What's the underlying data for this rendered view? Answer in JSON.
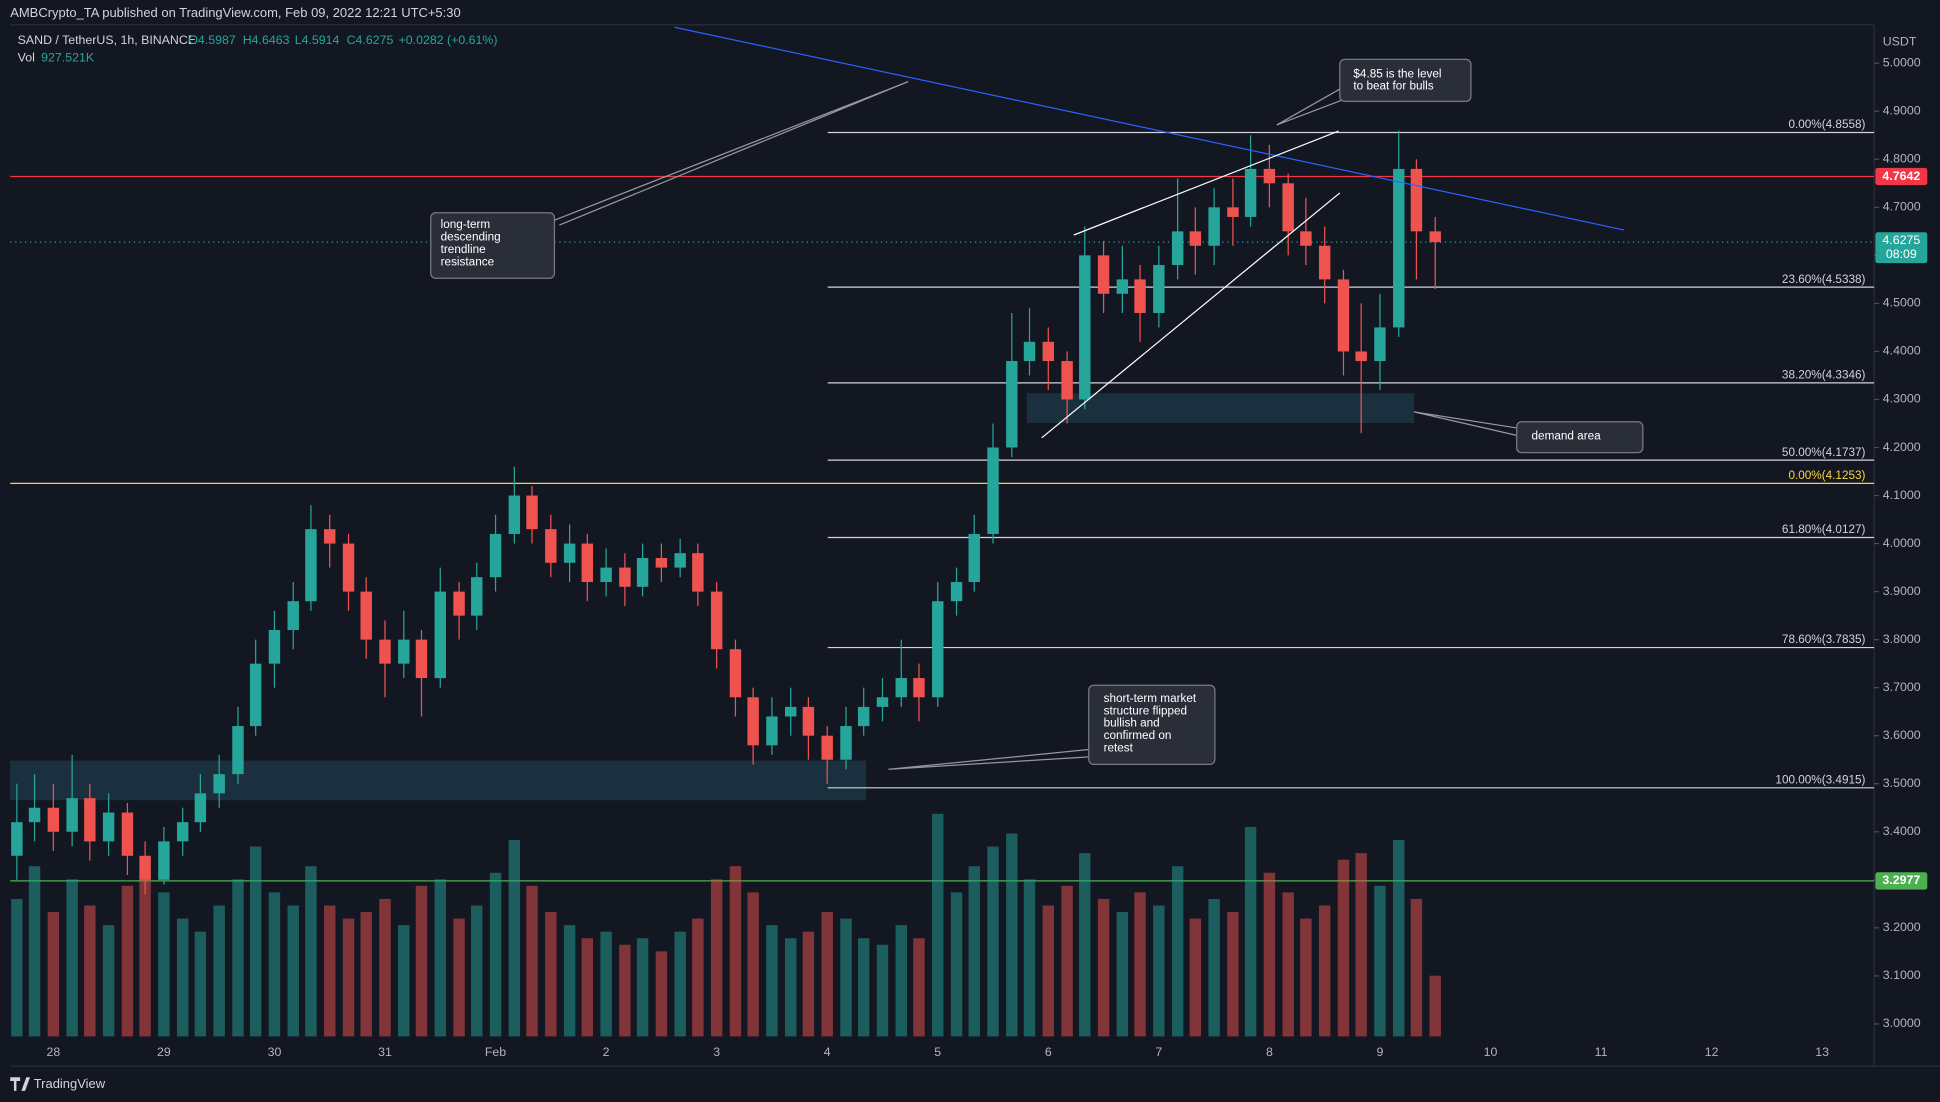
{
  "header": {
    "publisher": "AMBCrypto_TA published on TradingView.com, Feb 09, 2022 12:21 UTC+5:30"
  },
  "footer": {
    "brand": "TradingView"
  },
  "chart_data": {
    "type": "candlestick",
    "symbol": "SAND / TetherUS, 1h, BINANCE",
    "quote": [
      "O4.5987",
      "H4.6463",
      "L4.5914",
      "C4.6275",
      "+0.0282 (+0.61%)"
    ],
    "volume_title": "Vol",
    "volume_value": "927.521K",
    "currency": "USDT",
    "up_color": "#26a69a",
    "down_color": "#ef5350",
    "xlim": [
      27.61,
      44.47
    ],
    "ylim": [
      2.961,
      5.075
    ],
    "xticks": [
      28,
      29,
      30,
      31,
      {
        "value": 32,
        "label": "Feb"
      },
      {
        "value": 33,
        "label": "2"
      },
      {
        "value": 34,
        "label": "3"
      },
      {
        "value": 35,
        "label": "4"
      },
      {
        "value": 36,
        "label": "5"
      },
      {
        "value": 37,
        "label": "6"
      },
      {
        "value": 38,
        "label": "7"
      },
      {
        "value": 39,
        "label": "8"
      },
      {
        "value": 40,
        "label": "9"
      },
      {
        "value": 41,
        "label": "10"
      },
      {
        "value": 42,
        "label": "11"
      },
      {
        "value": 43,
        "label": "12"
      },
      {
        "value": 44,
        "label": "13"
      }
    ],
    "yticks": [
      {
        "value": 3.0,
        "label": "3.0000"
      },
      {
        "value": 3.1,
        "label": "3.1000"
      },
      {
        "value": 3.2,
        "label": "3.2000"
      },
      {
        "value": 3.3,
        "label": "3.3000"
      },
      {
        "value": 3.4,
        "label": "3.4000"
      },
      {
        "value": 3.5,
        "label": "3.5000"
      },
      {
        "value": 3.6,
        "label": "3.6000"
      },
      {
        "value": 3.7,
        "label": "3.7000"
      },
      {
        "value": 3.8,
        "label": "3.8000"
      },
      {
        "value": 3.9,
        "label": "3.9000"
      },
      {
        "value": 4.0,
        "label": "4.0000"
      },
      {
        "value": 4.1,
        "label": "4.1000"
      },
      {
        "value": 4.2,
        "label": "4.2000"
      },
      {
        "value": 4.3,
        "label": "4.3000"
      },
      {
        "value": 4.4,
        "label": "4.4000"
      },
      {
        "value": 4.5,
        "label": "4.5000"
      },
      {
        "value": 4.6,
        "label": "4.6000"
      },
      {
        "value": 4.7,
        "label": "4.7000"
      },
      {
        "value": 4.8,
        "label": "4.8000"
      },
      {
        "value": 4.9,
        "label": "4.9000"
      },
      {
        "value": 5.0,
        "label": "5.0000"
      }
    ],
    "grid": true,
    "candles": [
      [
        27.67,
        3.35,
        3.5,
        3.3,
        3.42
      ],
      [
        27.83,
        3.42,
        3.52,
        3.38,
        3.45
      ],
      [
        28.0,
        3.45,
        3.5,
        3.36,
        3.4
      ],
      [
        28.17,
        3.4,
        3.56,
        3.37,
        3.47
      ],
      [
        28.33,
        3.47,
        3.5,
        3.34,
        3.38
      ],
      [
        28.5,
        3.38,
        3.48,
        3.35,
        3.44
      ],
      [
        28.67,
        3.44,
        3.46,
        3.31,
        3.35
      ],
      [
        28.83,
        3.35,
        3.38,
        3.27,
        3.3
      ],
      [
        29.0,
        3.3,
        3.41,
        3.29,
        3.38
      ],
      [
        29.17,
        3.38,
        3.45,
        3.35,
        3.42
      ],
      [
        29.33,
        3.42,
        3.52,
        3.4,
        3.48
      ],
      [
        29.5,
        3.48,
        3.56,
        3.45,
        3.52
      ],
      [
        29.67,
        3.52,
        3.66,
        3.5,
        3.62
      ],
      [
        29.83,
        3.62,
        3.8,
        3.6,
        3.75
      ],
      [
        30.0,
        3.75,
        3.86,
        3.7,
        3.82
      ],
      [
        30.17,
        3.82,
        3.92,
        3.78,
        3.88
      ],
      [
        30.33,
        3.88,
        4.08,
        3.86,
        4.03
      ],
      [
        30.5,
        4.03,
        4.06,
        3.95,
        4.0
      ],
      [
        30.67,
        4.0,
        4.02,
        3.86,
        3.9
      ],
      [
        30.83,
        3.9,
        3.93,
        3.76,
        3.8
      ],
      [
        31.0,
        3.8,
        3.84,
        3.68,
        3.75
      ],
      [
        31.17,
        3.75,
        3.86,
        3.72,
        3.8
      ],
      [
        31.33,
        3.8,
        3.82,
        3.64,
        3.72
      ],
      [
        31.5,
        3.72,
        3.95,
        3.7,
        3.9
      ],
      [
        31.67,
        3.9,
        3.92,
        3.8,
        3.85
      ],
      [
        31.83,
        3.85,
        3.96,
        3.82,
        3.93
      ],
      [
        32.0,
        3.93,
        4.06,
        3.9,
        4.02
      ],
      [
        32.17,
        4.02,
        4.16,
        4.0,
        4.1
      ],
      [
        32.33,
        4.1,
        4.12,
        4.0,
        4.03
      ],
      [
        32.5,
        4.03,
        4.06,
        3.93,
        3.96
      ],
      [
        32.67,
        3.96,
        4.04,
        3.92,
        4.0
      ],
      [
        32.83,
        4.0,
        4.02,
        3.88,
        3.92
      ],
      [
        33.0,
        3.92,
        3.99,
        3.89,
        3.95
      ],
      [
        33.17,
        3.95,
        3.98,
        3.87,
        3.91
      ],
      [
        33.33,
        3.91,
        4.0,
        3.89,
        3.97
      ],
      [
        33.5,
        3.97,
        4.0,
        3.92,
        3.95
      ],
      [
        33.67,
        3.95,
        4.01,
        3.93,
        3.98
      ],
      [
        33.83,
        3.98,
        4.0,
        3.87,
        3.9
      ],
      [
        34.0,
        3.9,
        3.92,
        3.74,
        3.78
      ],
      [
        34.17,
        3.78,
        3.8,
        3.64,
        3.68
      ],
      [
        34.33,
        3.68,
        3.7,
        3.54,
        3.58
      ],
      [
        34.5,
        3.58,
        3.68,
        3.56,
        3.64
      ],
      [
        34.67,
        3.64,
        3.7,
        3.6,
        3.66
      ],
      [
        34.83,
        3.66,
        3.68,
        3.55,
        3.6
      ],
      [
        35.0,
        3.6,
        3.62,
        3.5,
        3.55
      ],
      [
        35.17,
        3.55,
        3.66,
        3.53,
        3.62
      ],
      [
        35.33,
        3.62,
        3.7,
        3.6,
        3.66
      ],
      [
        35.5,
        3.66,
        3.72,
        3.63,
        3.68
      ],
      [
        35.67,
        3.68,
        3.8,
        3.66,
        3.72
      ],
      [
        35.83,
        3.72,
        3.75,
        3.63,
        3.68
      ],
      [
        36.0,
        3.68,
        3.92,
        3.66,
        3.88
      ],
      [
        36.17,
        3.88,
        3.95,
        3.85,
        3.92
      ],
      [
        36.33,
        3.92,
        4.06,
        3.9,
        4.02
      ],
      [
        36.5,
        4.02,
        4.25,
        4.0,
        4.2
      ],
      [
        36.67,
        4.2,
        4.48,
        4.18,
        4.38
      ],
      [
        36.83,
        4.38,
        4.49,
        4.35,
        4.42
      ],
      [
        37.0,
        4.42,
        4.45,
        4.32,
        4.38
      ],
      [
        37.17,
        4.38,
        4.4,
        4.25,
        4.3
      ],
      [
        37.33,
        4.3,
        4.66,
        4.28,
        4.6
      ],
      [
        37.5,
        4.6,
        4.63,
        4.48,
        4.52
      ],
      [
        37.67,
        4.52,
        4.62,
        4.48,
        4.55
      ],
      [
        37.83,
        4.55,
        4.58,
        4.42,
        4.48
      ],
      [
        38.0,
        4.48,
        4.62,
        4.45,
        4.58
      ],
      [
        38.17,
        4.58,
        4.76,
        4.55,
        4.65
      ],
      [
        38.33,
        4.65,
        4.7,
        4.56,
        4.62
      ],
      [
        38.5,
        4.62,
        4.74,
        4.58,
        4.7
      ],
      [
        38.67,
        4.7,
        4.76,
        4.62,
        4.68
      ],
      [
        38.83,
        4.68,
        4.85,
        4.66,
        4.78
      ],
      [
        39.0,
        4.78,
        4.83,
        4.7,
        4.75
      ],
      [
        39.17,
        4.75,
        4.77,
        4.6,
        4.65
      ],
      [
        39.33,
        4.65,
        4.72,
        4.58,
        4.62
      ],
      [
        39.5,
        4.62,
        4.66,
        4.5,
        4.55
      ],
      [
        39.67,
        4.55,
        4.57,
        4.35,
        4.4
      ],
      [
        39.83,
        4.4,
        4.5,
        4.23,
        4.38
      ],
      [
        40.0,
        4.38,
        4.52,
        4.32,
        4.45
      ],
      [
        40.17,
        4.45,
        4.86,
        4.43,
        4.78
      ],
      [
        40.33,
        4.78,
        4.8,
        4.55,
        4.65
      ],
      [
        40.5,
        4.65,
        4.68,
        4.53,
        4.6275
      ]
    ],
    "volume": [
      2100,
      2600,
      1900,
      2400,
      2000,
      1700,
      2300,
      2500,
      2200,
      1800,
      1600,
      2000,
      2400,
      2900,
      2200,
      2000,
      2600,
      2000,
      1800,
      1900,
      2100,
      1700,
      2300,
      2400,
      1800,
      2000,
      2500,
      3000,
      2300,
      1900,
      1700,
      1500,
      1600,
      1400,
      1500,
      1300,
      1600,
      1800,
      2400,
      2600,
      2200,
      1700,
      1500,
      1600,
      1900,
      1800,
      1500,
      1400,
      1700,
      1500,
      3400,
      2200,
      2600,
      2900,
      3100,
      2400,
      2000,
      2300,
      2800,
      2100,
      1900,
      2200,
      2000,
      2600,
      1800,
      2100,
      1900,
      3200,
      2500,
      2200,
      1800,
      2000,
      2700,
      2800,
      2300,
      3000,
      2100,
      927.521
    ],
    "levels": [
      {
        "value": 4.7642,
        "label": "4.7642",
        "color": "#f23645"
      },
      {
        "value": 3.2977,
        "label": "3.2977",
        "color": "#4caf50"
      }
    ],
    "last_price": {
      "value": 4.6275,
      "label": "4.6275",
      "countdown": "08:09",
      "color": "#26a69a"
    },
    "fib_reference": {
      "value": 4.1253,
      "label": "0.00%(4.1253)",
      "color": "#f7d343"
    },
    "fib_levels": [
      {
        "value": 4.8558,
        "label": "0.00%(4.8558)"
      },
      {
        "value": 4.5338,
        "label": "23.60%(4.5338)"
      },
      {
        "value": 4.3346,
        "label": "38.20%(4.3346)"
      },
      {
        "value": 4.1737,
        "label": "50.00%(4.1737)"
      },
      {
        "value": 4.0127,
        "label": "61.80%(4.0127)"
      },
      {
        "value": 3.7835,
        "label": "78.60%(3.7835)"
      },
      {
        "value": 3.4915,
        "label": "100.00%(3.4915)"
      }
    ],
    "annotations": [
      {
        "lines": [
          "long-term",
          "descending",
          "trendline",
          "resistance"
        ]
      },
      {
        "lines": [
          "$4.85 is the level",
          "to beat for bulls"
        ]
      },
      {
        "lines": [
          "demand area"
        ]
      },
      {
        "lines": [
          "short-term market",
          "structure flipped",
          "bullish and",
          "confirmed on",
          "retest"
        ]
      }
    ]
  }
}
